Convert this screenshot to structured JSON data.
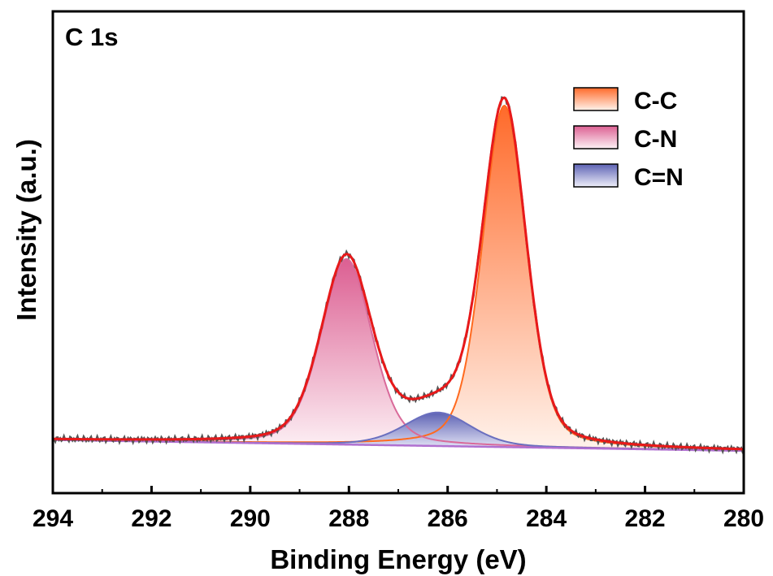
{
  "chart_data": {
    "type": "line",
    "panel_label": "C 1s",
    "xlabel": "Binding Energy (eV)",
    "ylabel": "Intensity (a.u.)",
    "xlim": [
      294,
      280
    ],
    "x_reversed": true,
    "ylim": [
      -0.12,
      1.03
    ],
    "yticks_visible": false,
    "xticks": [
      294,
      292,
      290,
      288,
      286,
      284,
      282,
      280
    ],
    "grid": false,
    "legend_position": "top-right",
    "background": {
      "start": 294,
      "end": 280,
      "start_value": 0.007,
      "end_value": -0.019
    },
    "series": [
      {
        "name": "C-C",
        "role": "component",
        "center": 284.85,
        "height": 0.815,
        "fwhm": 1.05,
        "color": "#ff6a1f",
        "fill_top": "#ff6a2a",
        "fill_bottom": "#fff3ec"
      },
      {
        "name": "C-N",
        "role": "component",
        "center": 288.05,
        "height": 0.443,
        "fwhm": 1.22,
        "color": "#d96a9a",
        "fill_top": "#dc5f92",
        "fill_bottom": "#fdf2f6"
      },
      {
        "name": "C=N",
        "role": "component",
        "center": 286.2,
        "height": 0.08,
        "fwhm": 1.6,
        "color": "#6a6fbf",
        "fill_top": "#5d62b4",
        "fill_bottom": "#eeeefa"
      }
    ],
    "experimental_color": "#555555",
    "envelope_color": "#e8191a",
    "baseline_color": "#b070d0",
    "legend": [
      {
        "label": "C-C",
        "fill_top": "#ff6a2a",
        "fill_bottom": "#fff3ec"
      },
      {
        "label": "C-N",
        "fill_top": "#dc5f92",
        "fill_bottom": "#fdf2f6"
      },
      {
        "label": "C=N",
        "fill_top": "#5d62b4",
        "fill_bottom": "#eeeefa"
      }
    ]
  }
}
